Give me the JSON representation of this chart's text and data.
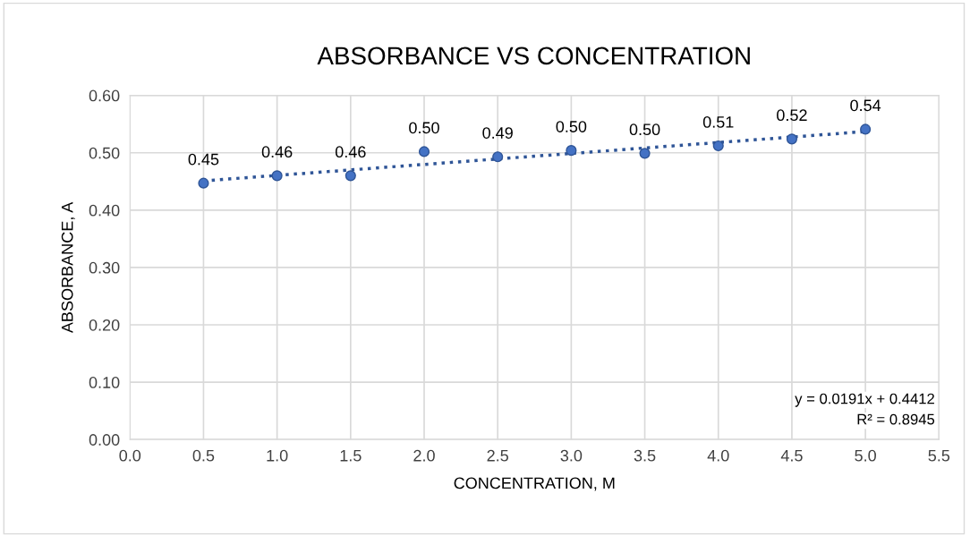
{
  "chart_data": {
    "type": "scatter",
    "title": "ABSORBANCE VS CONCENTRATION",
    "xlabel": "CONCENTRATION, M",
    "ylabel": "ABSORBANCE, A",
    "xlim": [
      0.0,
      5.5
    ],
    "xticks": [
      {
        "value": 0,
        "label": "0.0"
      },
      0.5,
      {
        "value": 1,
        "label": "1.0"
      },
      1.5,
      {
        "value": 2,
        "label": "2.0"
      },
      2.5,
      {
        "value": 3,
        "label": "3.0"
      },
      3.5,
      {
        "value": 4,
        "label": "4.0"
      },
      4.5,
      {
        "value": 5,
        "label": "5.0"
      },
      5.5
    ],
    "ylim": [
      0.0,
      0.6
    ],
    "yticks": [
      {
        "value": 0,
        "label": "0.00"
      },
      {
        "value": 0.1,
        "label": "0.10"
      },
      {
        "value": 0.2,
        "label": "0.20"
      },
      {
        "value": 0.3,
        "label": "0.30"
      },
      {
        "value": 0.4,
        "label": "0.40"
      },
      {
        "value": 0.5,
        "label": "0.50"
      },
      {
        "value": 0.6,
        "label": "0.60"
      }
    ],
    "grid": true,
    "marker": "circle",
    "series": [
      {
        "color": "#4472c4",
        "x": [
          0.5,
          1.0,
          1.5,
          2.0,
          2.5,
          3.0,
          3.5,
          4.0,
          4.5,
          5.0
        ],
        "values": [
          0.447,
          0.46,
          0.46,
          0.502,
          0.493,
          0.504,
          0.499,
          0.512,
          0.524,
          0.541
        ],
        "value_labels": [
          "0.45",
          "0.46",
          "0.46",
          "0.50",
          "0.49",
          "0.50",
          "0.50",
          "0.51",
          "0.52",
          "0.54"
        ]
      },
      {
        "type": "line",
        "color": "#2f5597",
        "line_style": "dotted",
        "marker": "none",
        "x": [
          0.5,
          5.0
        ],
        "values": [
          0.451,
          0.537
        ]
      }
    ],
    "annotations": [
      "y = 0.0191x + 0.4412",
      "R² = 0.8945"
    ]
  }
}
